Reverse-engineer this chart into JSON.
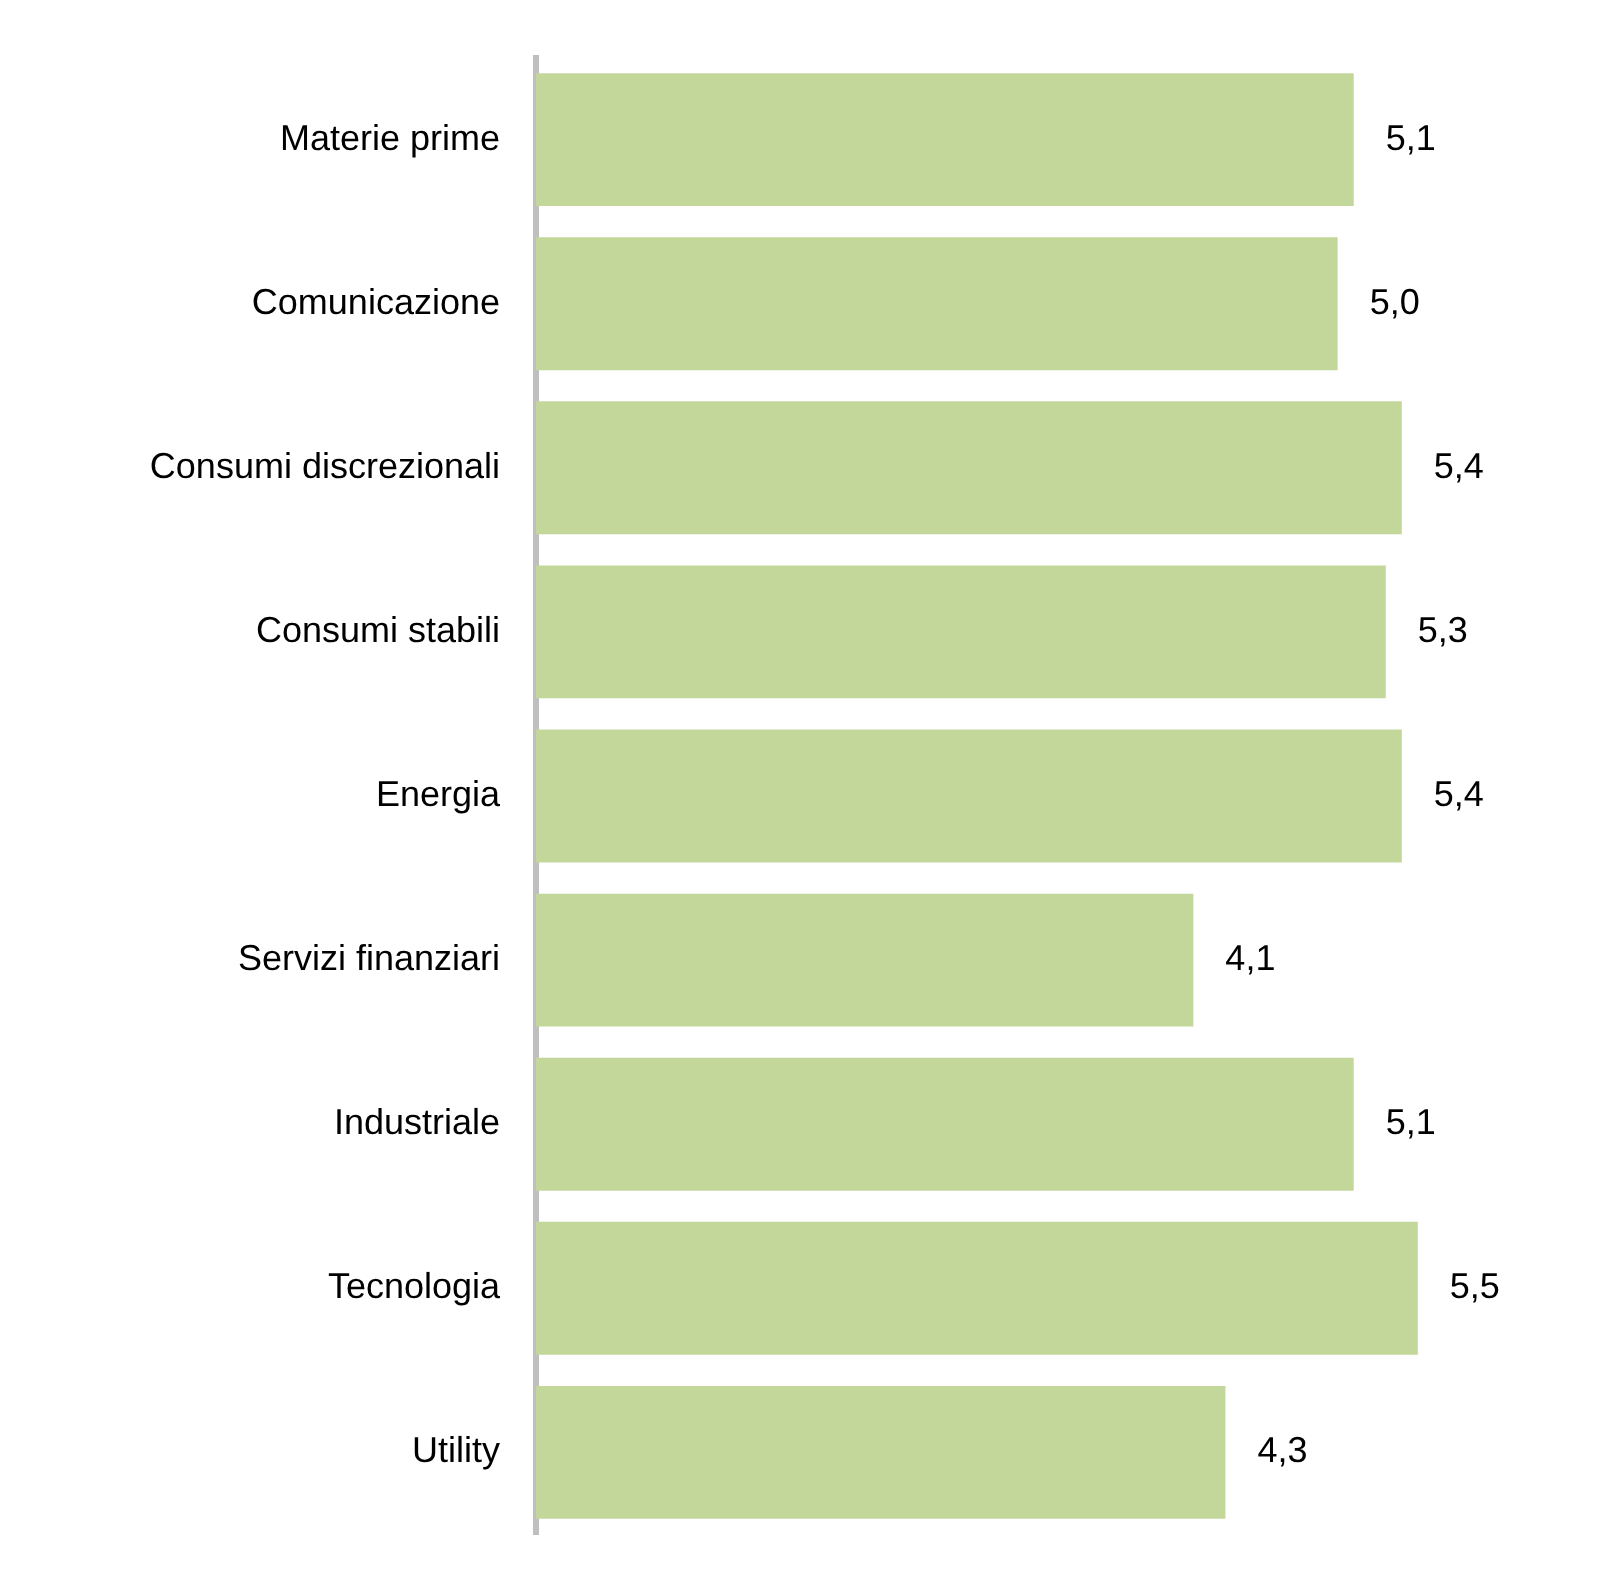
{
  "chart_data": {
    "type": "bar",
    "orientation": "horizontal",
    "categories": [
      "Materie prime",
      "Comunicazione",
      "Consumi discrezionali",
      "Consumi stabili",
      "Energia",
      "Servizi finanziari",
      "Industriale",
      "Tecnologia",
      "Utility"
    ],
    "values": [
      5.1,
      5.0,
      5.4,
      5.3,
      5.4,
      4.1,
      5.1,
      5.5,
      4.3
    ],
    "value_labels": [
      "5,1",
      "5,0",
      "5,4",
      "5,3",
      "5,4",
      "4,1",
      "5,1",
      "5,5",
      "4,3"
    ],
    "color": "#c4d79b"
  }
}
